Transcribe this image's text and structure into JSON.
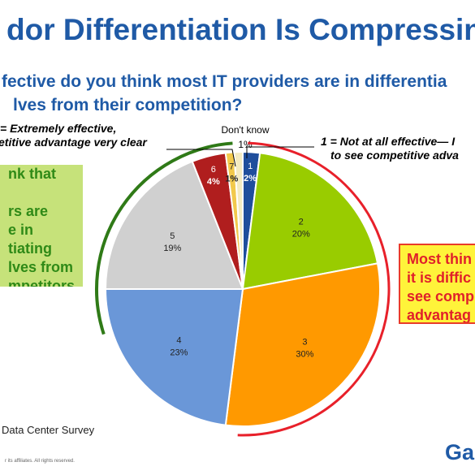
{
  "slide": {
    "title": "dor Differentiation Is Compressing",
    "question_line1": "fective do you think most IT providers are in differentia",
    "question_line2": "lves from their competition?",
    "label_extreme_line1": "= Extremely effective,",
    "label_extreme_line2": "etitive advantage very clear",
    "label_notall_line1": "1 = Not at all effective— I",
    "label_notall_line2": "to see competitive adva",
    "label_dontknow": "Don't know",
    "green_box_lines": [
      "nk that",
      "",
      "rs are",
      "e in",
      "tiating",
      "lves from",
      "mpetitors"
    ],
    "yellow_box_lines": [
      "Most thin",
      "it is diffic",
      "see comp",
      "advantag"
    ],
    "source": "Data Center Survey",
    "copyright": "r its affiliates. All rights reserved.",
    "brand": "Ga"
  },
  "chart_data": {
    "type": "pie",
    "title": "",
    "start_angle_deg": 0,
    "direction": "clockwise",
    "slices": [
      {
        "category": "1",
        "value": 2,
        "label": "2%",
        "color": "#1f4e9c"
      },
      {
        "category": "2",
        "value": 20,
        "label": "20%",
        "color": "#99cc00"
      },
      {
        "category": "3",
        "value": 30,
        "label": "30%",
        "color": "#ff9900"
      },
      {
        "category": "4",
        "value": 23,
        "label": "23%",
        "color": "#6a97d8"
      },
      {
        "category": "5",
        "value": 19,
        "label": "19%",
        "color": "#d0d0d0"
      },
      {
        "category": "6",
        "value": 4,
        "label": "4%",
        "color": "#b01e1e"
      },
      {
        "category": "7",
        "value": 1,
        "label": "1%",
        "color": "#f2c94c"
      },
      {
        "category": "Don't know",
        "value": 1,
        "label": "1%",
        "color": "#f4ebc1"
      }
    ],
    "colors": {
      "bracket_effective": "#2f7a17",
      "bracket_difficult": "#e8202a"
    }
  }
}
